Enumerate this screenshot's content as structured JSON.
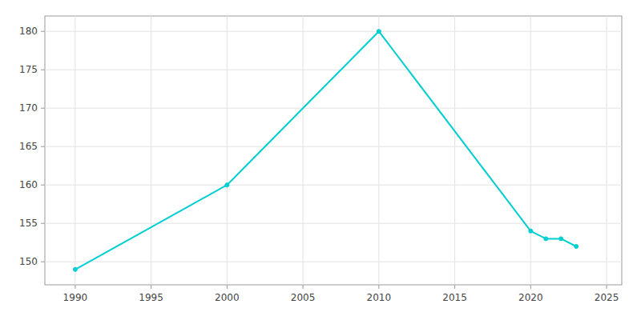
{
  "chart_data": {
    "type": "line",
    "x": [
      1990,
      2000,
      2010,
      2020,
      2021,
      2022,
      2023
    ],
    "values": [
      149,
      160,
      180,
      154,
      153,
      153,
      152
    ],
    "color": "#00CED1",
    "marker": "circle",
    "xlim": [
      1988,
      2026
    ],
    "ylim": [
      147,
      182
    ],
    "xticks": [
      1990,
      1995,
      2000,
      2005,
      2010,
      2015,
      2020,
      2025
    ],
    "yticks": [
      150,
      155,
      160,
      165,
      170,
      175,
      180
    ],
    "grid": true
  }
}
